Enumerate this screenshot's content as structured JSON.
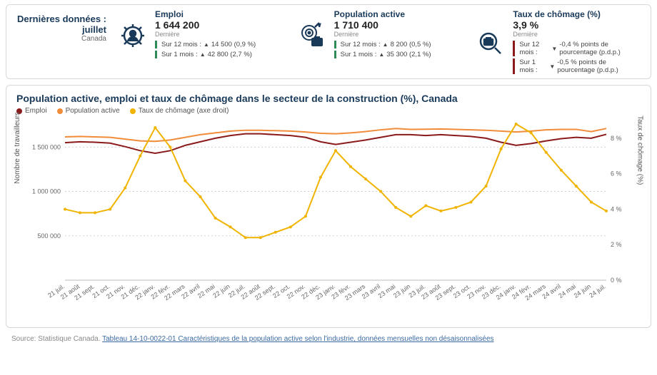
{
  "latest": {
    "line1": "Dernières données :",
    "line2": "juillet",
    "line3": "Canada"
  },
  "metrics": {
    "emploi": {
      "label": "Emploi",
      "value": "1 644 200",
      "sub": "Dernière",
      "d12_prefix": "Sur 12 mois :",
      "d12_arrow": "▲",
      "d12_text": "14 500 (0,9 %)",
      "d1_prefix": "Sur 1 mois :",
      "d1_arrow": "▲",
      "d1_text": "42 800 (2,7 %)"
    },
    "popactive": {
      "label": "Population active",
      "value": "1 710 400",
      "sub": "Dernière",
      "d12_prefix": "Sur 12 mois :",
      "d12_arrow": "▲",
      "d12_text": "8 200 (0,5 %)",
      "d1_prefix": "Sur 1 mois :",
      "d1_arrow": "▲",
      "d1_text": "35 300 (2,1 %)"
    },
    "chomage": {
      "label": "Taux de chômage (%)",
      "value": "3,9 %",
      "sub": "Dernière",
      "d12_prefix": "Sur 12 mois :",
      "d12_arrow": "▼",
      "d12_text": "-0,4 % points de pourcentage (p.d.p.)",
      "d1_prefix": "Sur 1 mois :",
      "d1_arrow": "▼",
      "d1_text": "-0,5 % points de pourcentage (p.d.p.)"
    }
  },
  "chart": {
    "title": "Population active, emploi et taux de chômage dans le secteur de la construction (%), Canada",
    "legend": {
      "emploi": "Emploi",
      "popactive": "Population active",
      "chomage": "Taux de chômage (axe droit)"
    },
    "colors": {
      "emploi": "#8b1a1a",
      "popactive": "#f08c3a",
      "chomage": "#f0b400",
      "grid": "#d0d0d0",
      "axis": "#bbbbbb",
      "text": "#666666",
      "bg": "#ffffff"
    },
    "y_left": {
      "label": "Nombre de travailleurs",
      "min": 0,
      "max": 1800000,
      "ticks": [
        500000,
        1000000,
        1500000
      ],
      "tick_labels": [
        "500 000",
        "1 000 000",
        "1 500 000"
      ]
    },
    "y_right": {
      "label": "Taux de chômage (%)",
      "min": 0,
      "max": 9,
      "ticks": [
        0,
        2,
        4,
        6,
        8
      ],
      "tick_labels": [
        "0 %",
        "2 %",
        "4 %",
        "6 %",
        "8 %"
      ]
    },
    "x_labels": [
      "21 juil.",
      "21 août",
      "21 sept.",
      "21 oct.",
      "21 nov.",
      "21 déc.",
      "22 janv.",
      "22 févr.",
      "22 mars",
      "22 avril",
      "22 mai",
      "22 juin",
      "22 juil.",
      "22 août",
      "22 sept.",
      "22 oct.",
      "22 nov.",
      "22 déc.",
      "23 janv.",
      "23 févr.",
      "23 mars",
      "23 avril",
      "23 mai",
      "23 juin",
      "23 juil.",
      "23 août",
      "23 sept.",
      "23 oct.",
      "23 nov.",
      "23 déc.",
      "24 janv.",
      "24 févr.",
      "24 mars",
      "24 avril",
      "24 mai",
      "24 juin",
      "24 juil."
    ],
    "series": {
      "emploi": [
        1550000,
        1560000,
        1555000,
        1545000,
        1505000,
        1460000,
        1430000,
        1460000,
        1520000,
        1560000,
        1600000,
        1630000,
        1650000,
        1650000,
        1640000,
        1630000,
        1610000,
        1560000,
        1530000,
        1555000,
        1580000,
        1610000,
        1640000,
        1640000,
        1630000,
        1640000,
        1630000,
        1620000,
        1600000,
        1555000,
        1520000,
        1540000,
        1570000,
        1595000,
        1610000,
        1600000,
        1644000
      ],
      "popactive": [
        1615000,
        1620000,
        1615000,
        1610000,
        1590000,
        1570000,
        1565000,
        1580000,
        1610000,
        1640000,
        1660000,
        1680000,
        1690000,
        1690000,
        1685000,
        1680000,
        1670000,
        1655000,
        1650000,
        1660000,
        1675000,
        1695000,
        1710000,
        1700000,
        1702000,
        1705000,
        1700000,
        1695000,
        1690000,
        1680000,
        1670000,
        1680000,
        1695000,
        1700000,
        1700000,
        1675000,
        1710000
      ],
      "chomage": [
        4.0,
        3.8,
        3.8,
        4.0,
        5.2,
        7.0,
        8.6,
        7.5,
        5.6,
        4.7,
        3.5,
        3.0,
        2.4,
        2.4,
        2.7,
        3.0,
        3.6,
        5.8,
        7.3,
        6.4,
        5.7,
        5.0,
        4.1,
        3.6,
        4.2,
        3.9,
        4.1,
        4.4,
        5.3,
        7.4,
        8.8,
        8.3,
        7.2,
        6.2,
        5.3,
        4.4,
        3.9
      ]
    },
    "line_width": 2,
    "font_size_axis": 9
  },
  "source": {
    "prefix": "Source: Statistique Canada. ",
    "link": "Tableau 14-10-0022-01 Caractéristiques de la population active selon l'industrie, données mensuelles non désaisonnalisées"
  }
}
